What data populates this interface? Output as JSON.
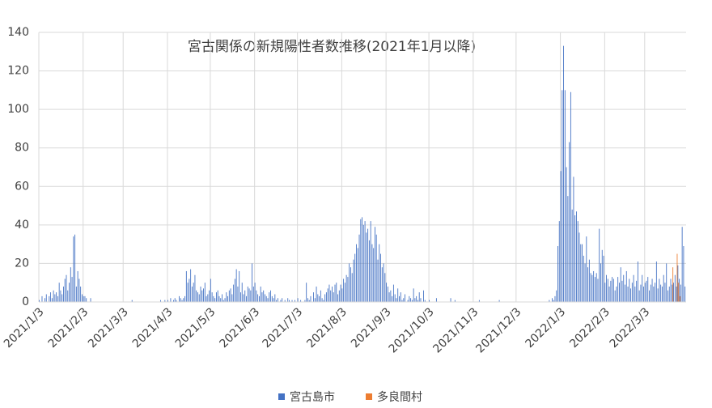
{
  "chart_data": {
    "type": "bar",
    "title": "宮古関係の新規陽性者数推移(2021年1月以降)",
    "categories": [
      "2021/1/3",
      null,
      null,
      null,
      null,
      null,
      null,
      null,
      null,
      null,
      null,
      null,
      null,
      null,
      null,
      null,
      null,
      null,
      null,
      null,
      null,
      null,
      null,
      null,
      null,
      null,
      null,
      null,
      null,
      null,
      null,
      "2021/2/3",
      null,
      null,
      null,
      null,
      null,
      null,
      null,
      null,
      null,
      null,
      null,
      null,
      null,
      null,
      null,
      null,
      null,
      null,
      null,
      null,
      null,
      null,
      null,
      null,
      null,
      null,
      null,
      "2021/3/3",
      null,
      null,
      null,
      null,
      null,
      null,
      null,
      null,
      null,
      null,
      null,
      null,
      null,
      null,
      null,
      null,
      null,
      null,
      null,
      null,
      null,
      null,
      null,
      null,
      null,
      null,
      null,
      null,
      null,
      null,
      "2021/4/3",
      null,
      null,
      null,
      null,
      null,
      null,
      null,
      null,
      null,
      null,
      null,
      null,
      null,
      null,
      null,
      null,
      null,
      null,
      null,
      null,
      null,
      null,
      null,
      null,
      null,
      null,
      null,
      null,
      null,
      "2021/5/3",
      null,
      null,
      null,
      null,
      null,
      null,
      null,
      null,
      null,
      null,
      null,
      null,
      null,
      null,
      null,
      null,
      null,
      null,
      null,
      null,
      null,
      null,
      null,
      null,
      null,
      null,
      null,
      null,
      null,
      null,
      "2021/6/3",
      null,
      null,
      null,
      null,
      null,
      null,
      null,
      null,
      null,
      null,
      null,
      null,
      null,
      null,
      null,
      null,
      null,
      null,
      null,
      null,
      null,
      null,
      null,
      null,
      null,
      null,
      null,
      null,
      null,
      "2021/7/3",
      null,
      null,
      null,
      null,
      null,
      null,
      null,
      null,
      null,
      null,
      null,
      null,
      null,
      null,
      null,
      null,
      null,
      null,
      null,
      null,
      null,
      null,
      null,
      null,
      null,
      null,
      null,
      null,
      null,
      null,
      "2021/8/3",
      null,
      null,
      null,
      null,
      null,
      null,
      null,
      null,
      null,
      null,
      null,
      null,
      null,
      null,
      null,
      null,
      null,
      null,
      null,
      null,
      null,
      null,
      null,
      null,
      null,
      null,
      null,
      null,
      null,
      null,
      "2021/9/3",
      null,
      null,
      null,
      null,
      null,
      null,
      null,
      null,
      null,
      null,
      null,
      null,
      null,
      null,
      null,
      null,
      null,
      null,
      null,
      null,
      null,
      null,
      null,
      null,
      null,
      null,
      null,
      null,
      null,
      "2021/10/3",
      null,
      null,
      null,
      null,
      null,
      null,
      null,
      null,
      null,
      null,
      null,
      null,
      null,
      null,
      null,
      null,
      null,
      null,
      null,
      null,
      null,
      null,
      null,
      null,
      null,
      null,
      null,
      null,
      null,
      null,
      "2021/11/3",
      null,
      null,
      null,
      null,
      null,
      null,
      null,
      null,
      null,
      null,
      null,
      null,
      null,
      null,
      null,
      null,
      null,
      null,
      null,
      null,
      null,
      null,
      null,
      null,
      null,
      null,
      null,
      null,
      null,
      "2021/12/3",
      null,
      null,
      null,
      null,
      null,
      null,
      null,
      null,
      null,
      null,
      null,
      null,
      null,
      null,
      null,
      null,
      null,
      null,
      null,
      null,
      null,
      null,
      null,
      null,
      null,
      null,
      null,
      null,
      null,
      null,
      "2022/1/3",
      null,
      null,
      null,
      null,
      null,
      null,
      null,
      null,
      null,
      null,
      null,
      null,
      null,
      null,
      null,
      null,
      null,
      null,
      null,
      null,
      null,
      null,
      null,
      null,
      null,
      null,
      null,
      null,
      null,
      null,
      "2022/2/3",
      null,
      null,
      null,
      null,
      null,
      null,
      null,
      null,
      null,
      null,
      null,
      null,
      null,
      null,
      null,
      null,
      null,
      null,
      null,
      null,
      null,
      null,
      null,
      null,
      null,
      null,
      null,
      "2022/3/3",
      null,
      null,
      null,
      null,
      null,
      null,
      null,
      null,
      null,
      null,
      null,
      null,
      null,
      null,
      null,
      null,
      null,
      null,
      null,
      null,
      null,
      null,
      null,
      null,
      null,
      null,
      null,
      null
    ],
    "series": [
      {
        "name": "宮古島市",
        "color": "#4472c4",
        "values": [
          1,
          0,
          3,
          0,
          2,
          4,
          0,
          3,
          5,
          2,
          6,
          4,
          5,
          3,
          10,
          6,
          4,
          8,
          12,
          14,
          6,
          10,
          18,
          13,
          34,
          35,
          8,
          16,
          12,
          8,
          4,
          3,
          3,
          2,
          0,
          0,
          2,
          0,
          0,
          0,
          0,
          0,
          0,
          0,
          0,
          0,
          0,
          0,
          0,
          0,
          0,
          0,
          0,
          0,
          0,
          0,
          0,
          0,
          0,
          0,
          0,
          0,
          0,
          0,
          0,
          1,
          0,
          0,
          0,
          0,
          0,
          0,
          0,
          0,
          0,
          0,
          0,
          0,
          0,
          0,
          0,
          0,
          0,
          0,
          0,
          1,
          0,
          0,
          1,
          0,
          1,
          0,
          2,
          0,
          1,
          2,
          1,
          0,
          3,
          2,
          1,
          2,
          3,
          16,
          10,
          12,
          17,
          8,
          10,
          14,
          6,
          5,
          4,
          8,
          6,
          7,
          10,
          3,
          4,
          6,
          12,
          5,
          3,
          2,
          5,
          6,
          3,
          2,
          4,
          1,
          2,
          5,
          3,
          6,
          7,
          4,
          9,
          12,
          17,
          8,
          16,
          5,
          10,
          4,
          6,
          3,
          8,
          7,
          6,
          20,
          8,
          10,
          6,
          4,
          3,
          8,
          5,
          6,
          4,
          3,
          2,
          5,
          6,
          3,
          2,
          4,
          1,
          2,
          0,
          1,
          2,
          0,
          1,
          0,
          2,
          1,
          0,
          1,
          0,
          1,
          0,
          2,
          0,
          1,
          0,
          0,
          1,
          10,
          2,
          1,
          3,
          0,
          5,
          2,
          8,
          4,
          3,
          6,
          2,
          1,
          4,
          5,
          7,
          9,
          6,
          8,
          5,
          9,
          10,
          4,
          6,
          9,
          7,
          12,
          10,
          14,
          13,
          20,
          18,
          15,
          22,
          25,
          30,
          28,
          35,
          43,
          44,
          40,
          42,
          36,
          38,
          32,
          42,
          30,
          28,
          39,
          35,
          22,
          30,
          25,
          18,
          20,
          15,
          10,
          8,
          5,
          6,
          3,
          9,
          4,
          2,
          7,
          3,
          5,
          1,
          2,
          4,
          0,
          1,
          3,
          2,
          1,
          7,
          2,
          3,
          1,
          5,
          2,
          0,
          6,
          1,
          0,
          0,
          1,
          0,
          0,
          0,
          0,
          2,
          0,
          0,
          0,
          0,
          0,
          0,
          0,
          0,
          0,
          2,
          0,
          0,
          1,
          0,
          0,
          0,
          0,
          0,
          0,
          0,
          0,
          0,
          0,
          0,
          0,
          0,
          0,
          0,
          0,
          1,
          0,
          0,
          0,
          0,
          0,
          0,
          0,
          0,
          0,
          0,
          0,
          0,
          0,
          1,
          0,
          0,
          0,
          0,
          0,
          0,
          0,
          0,
          0,
          0,
          0,
          0,
          0,
          0,
          0,
          0,
          0,
          0,
          0,
          0,
          0,
          0,
          0,
          0,
          0,
          0,
          0,
          0,
          0,
          0,
          0,
          0,
          0,
          0,
          1,
          0,
          2,
          1,
          3,
          6,
          29,
          42,
          68,
          110,
          133,
          110,
          70,
          55,
          83,
          109,
          48,
          65,
          45,
          47,
          42,
          36,
          30,
          30,
          24,
          20,
          34,
          18,
          22,
          15,
          14,
          16,
          13,
          15,
          12,
          38,
          20,
          27,
          24,
          10,
          14,
          12,
          8,
          11,
          13,
          12,
          6,
          8,
          13,
          10,
          18,
          11,
          14,
          9,
          16,
          8,
          12,
          7,
          10,
          14,
          8,
          11,
          21,
          6,
          9,
          14,
          8,
          10,
          11,
          13,
          6,
          9,
          12,
          8,
          10,
          21,
          7,
          12,
          9,
          8,
          14,
          10,
          20,
          6,
          8,
          12,
          9,
          10,
          14,
          8,
          19,
          12,
          9,
          39,
          29,
          8
        ]
      },
      {
        "name": "多良間村",
        "color": "#ed7d31",
        "values": [
          0,
          0,
          0,
          0,
          0,
          0,
          0,
          0,
          0,
          0,
          0,
          0,
          0,
          0,
          0,
          0,
          0,
          0,
          0,
          0,
          0,
          0,
          0,
          0,
          0,
          0,
          0,
          0,
          0,
          0,
          0,
          0,
          0,
          0,
          0,
          0,
          0,
          0,
          0,
          0,
          0,
          0,
          0,
          0,
          0,
          0,
          0,
          0,
          0,
          0,
          0,
          0,
          0,
          0,
          0,
          0,
          0,
          0,
          0,
          0,
          0,
          0,
          0,
          0,
          0,
          0,
          0,
          0,
          0,
          0,
          0,
          0,
          0,
          0,
          0,
          0,
          0,
          0,
          0,
          0,
          0,
          0,
          0,
          0,
          0,
          0,
          0,
          0,
          0,
          0,
          0,
          0,
          0,
          0,
          0,
          0,
          0,
          0,
          0,
          0,
          0,
          0,
          0,
          0,
          0,
          0,
          0,
          0,
          0,
          0,
          0,
          0,
          0,
          0,
          0,
          0,
          0,
          0,
          0,
          0,
          0,
          0,
          0,
          0,
          0,
          0,
          0,
          0,
          0,
          0,
          0,
          0,
          0,
          0,
          0,
          0,
          0,
          0,
          0,
          0,
          0,
          0,
          0,
          0,
          0,
          0,
          0,
          0,
          0,
          0,
          0,
          0,
          0,
          0,
          0,
          0,
          0,
          0,
          0,
          0,
          0,
          0,
          0,
          0,
          0,
          0,
          0,
          0,
          0,
          0,
          0,
          0,
          0,
          0,
          0,
          0,
          0,
          0,
          0,
          0,
          0,
          0,
          0,
          0,
          0,
          0,
          0,
          0,
          0,
          0,
          0,
          0,
          0,
          0,
          0,
          0,
          0,
          0,
          0,
          0,
          0,
          0,
          0,
          0,
          0,
          0,
          0,
          0,
          0,
          0,
          0,
          0,
          0,
          0,
          0,
          0,
          0,
          0,
          0,
          0,
          0,
          0,
          0,
          0,
          0,
          0,
          0,
          0,
          0,
          0,
          0,
          0,
          0,
          0,
          0,
          0,
          0,
          0,
          0,
          0,
          0,
          0,
          0,
          0,
          0,
          0,
          0,
          0,
          0,
          0,
          0,
          0,
          0,
          0,
          0,
          0,
          0,
          0,
          0,
          0,
          0,
          0,
          0,
          0,
          0,
          0,
          0,
          0,
          0,
          0,
          0,
          0,
          0,
          0,
          0,
          0,
          0,
          0,
          0,
          0,
          0,
          0,
          0,
          0,
          0,
          0,
          0,
          0,
          0,
          0,
          0,
          0,
          0,
          0,
          0,
          0,
          0,
          0,
          0,
          0,
          0,
          0,
          0,
          0,
          0,
          0,
          0,
          0,
          0,
          0,
          0,
          0,
          0,
          0,
          0,
          0,
          0,
          0,
          0,
          0,
          0,
          0,
          0,
          0,
          0,
          0,
          0,
          0,
          0,
          0,
          0,
          0,
          0,
          0,
          0,
          0,
          0,
          0,
          0,
          0,
          0,
          0,
          0,
          0,
          0,
          0,
          0,
          0,
          0,
          0,
          0,
          0,
          0,
          0,
          0,
          0,
          0,
          0,
          0,
          0,
          0,
          0,
          0,
          0,
          0,
          0,
          0,
          0,
          0,
          0,
          0,
          0,
          0,
          0,
          0,
          0,
          0,
          0,
          0,
          0,
          0,
          0,
          0,
          0,
          0,
          0,
          0,
          0,
          0,
          0,
          0,
          0,
          0,
          0,
          0,
          0,
          0,
          0,
          0,
          0,
          0,
          0,
          0,
          0,
          0,
          0,
          0,
          0,
          0,
          0,
          0,
          0,
          0,
          0,
          0,
          0,
          0,
          0,
          0,
          0,
          0,
          0,
          0,
          0,
          0,
          0,
          0,
          0,
          0,
          0,
          0,
          0,
          0,
          0,
          0,
          0,
          0,
          0,
          0,
          0,
          0,
          0,
          0,
          18,
          0,
          0,
          25,
          10,
          3,
          0,
          0,
          0,
          0
        ]
      }
    ],
    "ylim": [
      0,
      140
    ],
    "yticks": [
      0,
      20,
      40,
      60,
      80,
      100,
      120,
      140
    ],
    "grid": true,
    "legend": "bottom"
  }
}
